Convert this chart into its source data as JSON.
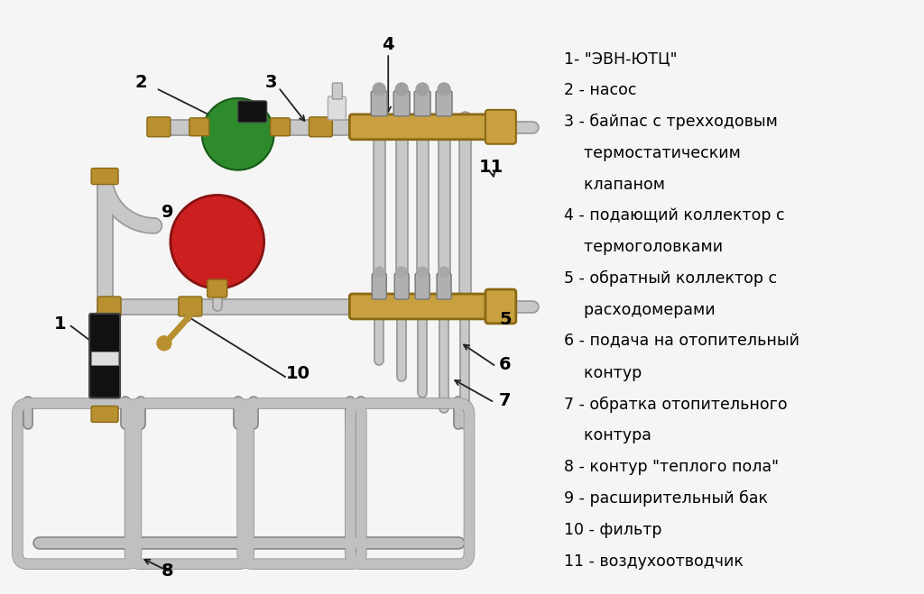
{
  "background_color": "#f5f5f5",
  "legend_items": [
    "1- \"ЭВН-ЮТЦ\"",
    "2 - насос",
    "3 - байпас с трехходовым",
    "    термостатическим",
    "    клапаном",
    "4 - подающий коллектор с",
    "    термоголовками",
    "5 - обратный коллектор с",
    "    расходомерами",
    "6 - подача на отопительный",
    "    контур",
    "7 - обратка отопительного",
    "    контура",
    "8 - контур \"теплого пола\"",
    "9 - расширительный бак",
    "10 - фильтр",
    "11 - воздухоотводчик"
  ],
  "pipe_color": "#c8c8c8",
  "pipe_edge": "#999999",
  "collector_color": "#c8a040",
  "collector_edge": "#8B6914",
  "green_color": "#2d8a2d",
  "red_color": "#cc2020",
  "black_color": "#1a1a1a",
  "arrow_color": "#222222",
  "fitting_color": "#b89030"
}
